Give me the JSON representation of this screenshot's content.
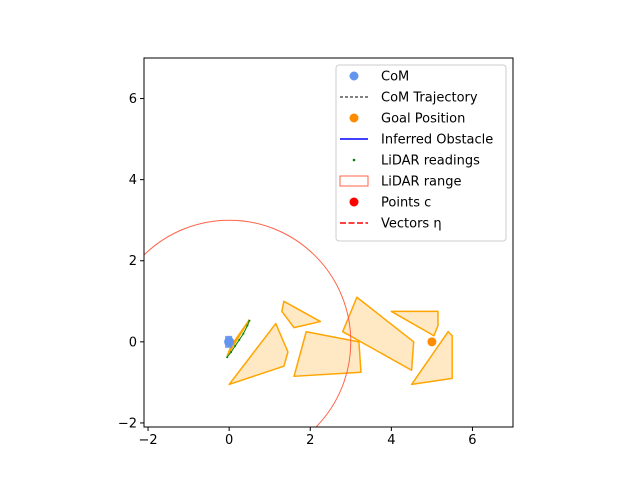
{
  "chart_data": {
    "type": "scatter",
    "xlim": [
      -2.1,
      7.0
    ],
    "ylim": [
      -2.1,
      7.0
    ],
    "x_ticks": [
      -2,
      0,
      2,
      4,
      6
    ],
    "y_ticks": [
      -2,
      0,
      2,
      4,
      6
    ],
    "x_tick_labels": [
      "−2",
      "0",
      "2",
      "4",
      "6"
    ],
    "y_tick_labels": [
      "−2",
      "0",
      "2",
      "4",
      "6"
    ],
    "grid": false,
    "legend_position": "upper-right",
    "colors": {
      "com": "#6495ed",
      "trajectory": "#000000",
      "goal": "#ff8c00",
      "inferred_obstacle": "#0000ff",
      "lidar_readings": "#008000",
      "lidar_range": "#ff6347",
      "points_c": "#ff0000",
      "vectors_eta": "#ff0000",
      "obstacle_edge": "#ffa500",
      "obstacle_fill": "#ffe8c4"
    },
    "legend": [
      {
        "key": "com",
        "label": "CoM",
        "marker": "circle"
      },
      {
        "key": "trajectory",
        "label": "CoM Trajectory",
        "marker": "dashed-line"
      },
      {
        "key": "goal",
        "label": "Goal Position",
        "marker": "circle"
      },
      {
        "key": "inferred_obstacle",
        "label": "Inferred Obstacle",
        "marker": "line"
      },
      {
        "key": "lidar_readings",
        "label": "LiDAR readings",
        "marker": "dot"
      },
      {
        "key": "lidar_range",
        "label": "LiDAR range",
        "marker": "rect"
      },
      {
        "key": "points_c",
        "label": "Points c",
        "marker": "circle"
      },
      {
        "key": "vectors_eta",
        "label": "Vectors η",
        "marker": "dashed-line"
      }
    ],
    "com": {
      "x": 0.0,
      "y": 0.0
    },
    "goal": {
      "x": 5.0,
      "y": 0.0
    },
    "lidar_range": {
      "cx": 0.0,
      "cy": 0.0,
      "r": 3.0
    },
    "obstacles": [
      [
        [
          0.0,
          -1.05
        ],
        [
          1.15,
          0.45
        ],
        [
          1.45,
          -0.25
        ],
        [
          1.35,
          -0.6
        ]
      ],
      [
        [
          1.3,
          0.75
        ],
        [
          1.6,
          0.35
        ],
        [
          2.25,
          0.5
        ],
        [
          1.35,
          1.0
        ]
      ],
      [
        [
          1.6,
          -0.85
        ],
        [
          1.9,
          0.25
        ],
        [
          3.2,
          0.0
        ],
        [
          3.25,
          -0.75
        ]
      ],
      [
        [
          2.8,
          0.25
        ],
        [
          3.15,
          1.1
        ],
        [
          4.55,
          0.0
        ],
        [
          4.5,
          -0.7
        ]
      ],
      [
        [
          4.0,
          0.75
        ],
        [
          5.15,
          0.75
        ],
        [
          5.15,
          0.4
        ],
        [
          5.05,
          0.15
        ]
      ],
      [
        [
          4.5,
          -1.05
        ],
        [
          5.4,
          0.25
        ],
        [
          5.5,
          0.15
        ],
        [
          5.5,
          -0.9
        ]
      ]
    ],
    "inferred_obstacle": [
      [
        -0.05,
        -0.35
      ],
      [
        0.5,
        0.55
      ],
      [
        0.05,
        -0.1
      ]
    ],
    "lidar_readings": [
      [
        -0.05,
        -0.38
      ],
      [
        0.05,
        -0.25
      ],
      [
        0.15,
        -0.1
      ],
      [
        0.25,
        0.05
      ],
      [
        0.35,
        0.2
      ],
      [
        0.45,
        0.4
      ],
      [
        0.5,
        0.52
      ]
    ],
    "com_trajectory": [
      [
        0.0,
        0.0
      ],
      [
        -0.05,
        -0.02
      ],
      [
        0.05,
        0.03
      ]
    ]
  }
}
